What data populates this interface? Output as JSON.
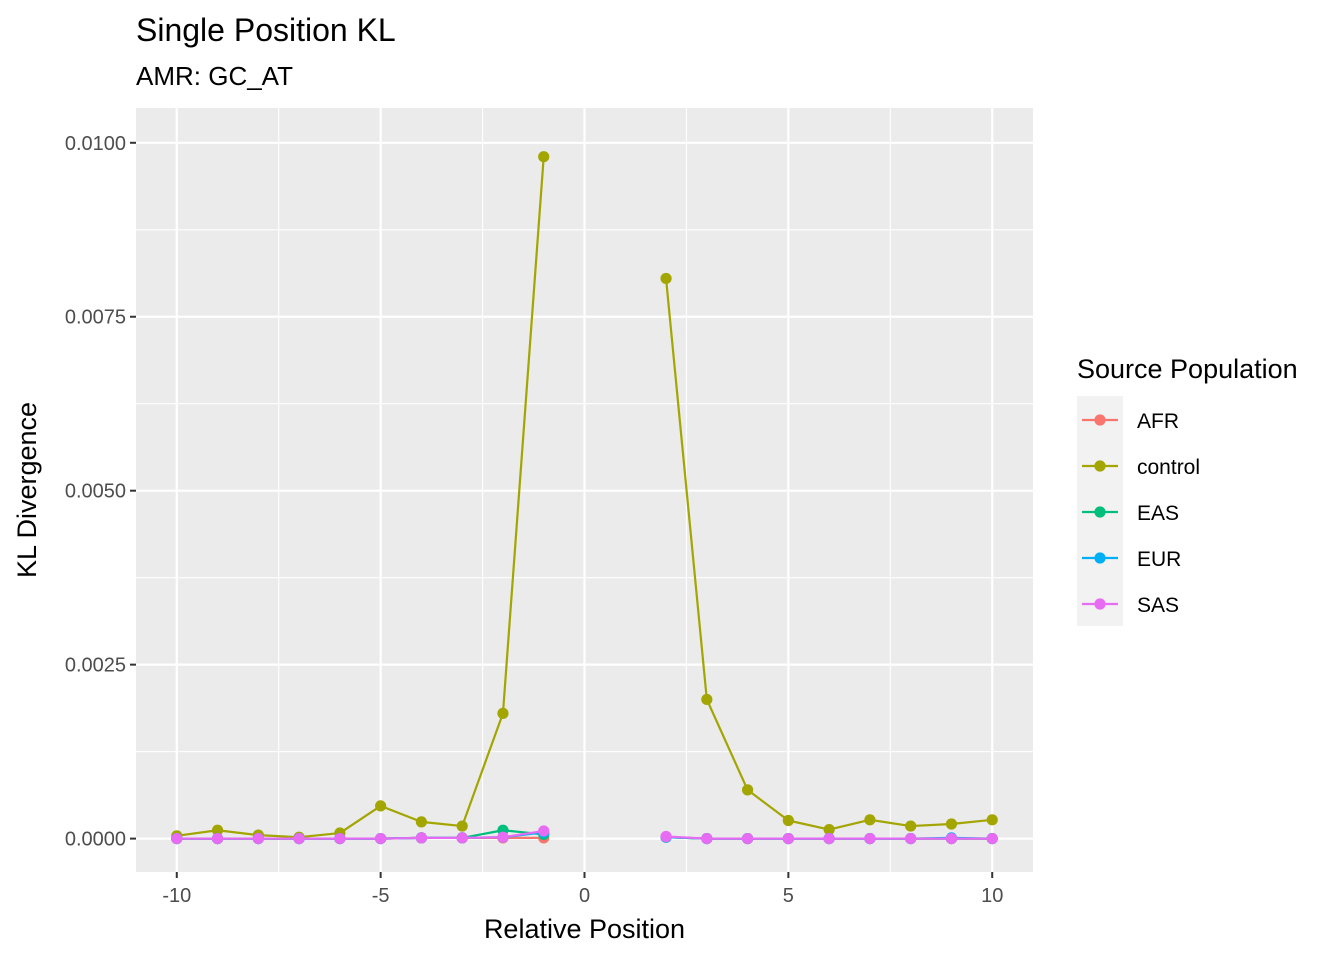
{
  "chart_data": {
    "type": "line",
    "title": "Single Position KL",
    "subtitle": "AMR: GC_AT",
    "xlabel": "Relative Position",
    "ylabel": "KL Divergence",
    "xlim": [
      -11,
      11
    ],
    "ylim": [
      -0.00048,
      0.0105
    ],
    "x_ticks": [
      -10,
      -5,
      0,
      5,
      10
    ],
    "x_tick_labels": [
      "-10",
      "-5",
      "0",
      "5",
      "10"
    ],
    "y_ticks": [
      0,
      0.0025,
      0.005,
      0.0075,
      0.01
    ],
    "y_tick_labels": [
      "0.0000",
      "0.0025",
      "0.0050",
      "0.0075",
      "0.0100"
    ],
    "grid": true,
    "panel_background": "#ebebeb",
    "legend": {
      "title": "Source Population",
      "placement": "right",
      "entries": [
        "AFR",
        "control",
        "EAS",
        "EUR",
        "SAS"
      ]
    },
    "x_left": [
      -10,
      -9,
      -8,
      -7,
      -6,
      -5,
      -4,
      -3,
      -2,
      -1
    ],
    "x_right": [
      2,
      3,
      4,
      5,
      6,
      7,
      8,
      9,
      10
    ],
    "series": [
      {
        "name": "AFR",
        "color": "#F8766D",
        "left": [
          0,
          0,
          0,
          0,
          0,
          0,
          1e-05,
          1e-05,
          1e-05,
          1e-05
        ],
        "right": [
          2e-05,
          0,
          0,
          0,
          0,
          0,
          0,
          0,
          0
        ]
      },
      {
        "name": "control",
        "color": "#A3A500",
        "left": [
          4e-05,
          0.00012,
          5e-05,
          2e-05,
          8e-05,
          0.00047,
          0.00024,
          0.00018,
          0.0018,
          0.0098
        ],
        "right": [
          0.00805,
          0.002,
          0.0007,
          0.00026,
          0.00013,
          0.00027,
          0.00018,
          0.00021,
          0.00027
        ]
      },
      {
        "name": "EAS",
        "color": "#00BF7D",
        "left": [
          0,
          0,
          0,
          0,
          0,
          0,
          1e-05,
          1e-05,
          0.00012,
          6e-05
        ],
        "right": [
          2e-05,
          0,
          0,
          0,
          0,
          0,
          0,
          0,
          0
        ]
      },
      {
        "name": "EUR",
        "color": "#00B0F6",
        "left": [
          0,
          0,
          0,
          0,
          0,
          0,
          1e-05,
          1e-05,
          2e-05,
          9e-05
        ],
        "right": [
          2e-05,
          0,
          0,
          0,
          0,
          0,
          0,
          1e-05,
          0
        ]
      },
      {
        "name": "SAS",
        "color": "#E76BF3",
        "left": [
          0,
          0,
          0,
          0,
          0,
          0,
          1e-05,
          1e-05,
          2e-05,
          0.00011
        ],
        "right": [
          3e-05,
          0,
          0,
          0,
          0,
          0,
          0,
          0,
          0
        ]
      }
    ]
  }
}
